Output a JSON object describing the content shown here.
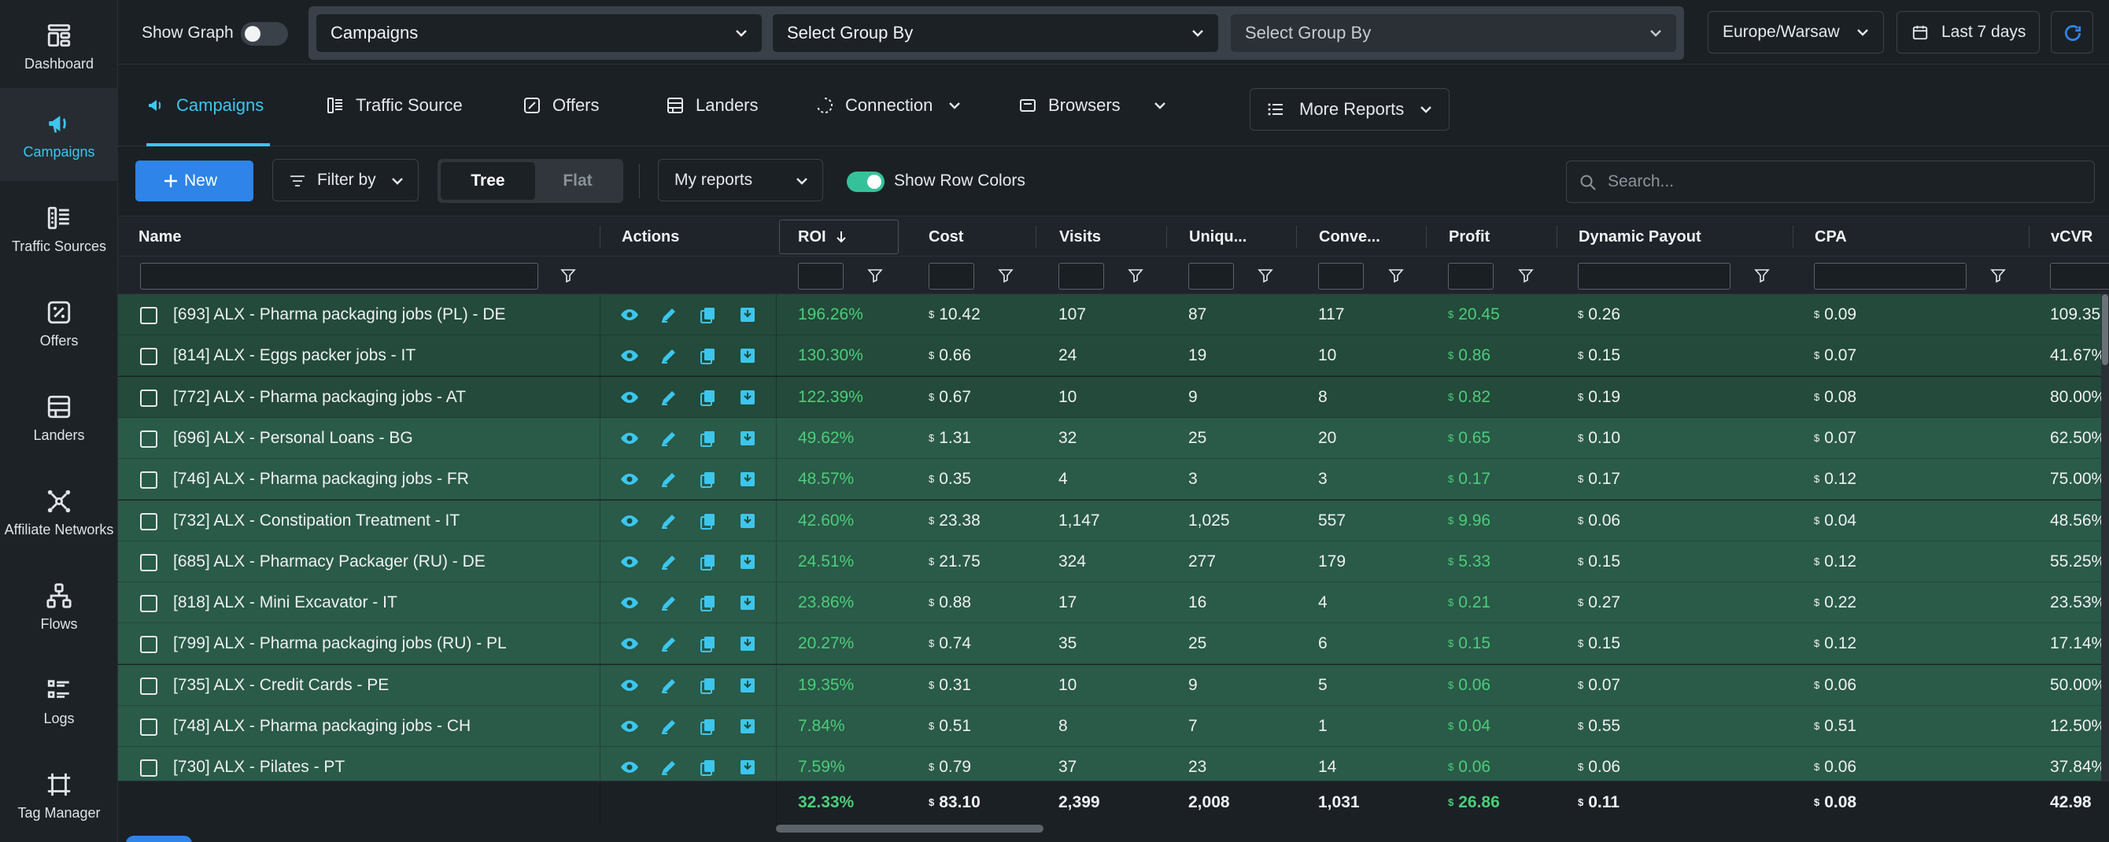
{
  "sidebar": {
    "items": [
      {
        "label": "Dashboard",
        "icon": "dashboard-icon",
        "active": false
      },
      {
        "label": "Campaigns",
        "icon": "megaphone-icon",
        "active": true
      },
      {
        "label": "Traffic Sources",
        "icon": "traffic-sources-icon",
        "active": false
      },
      {
        "label": "Offers",
        "icon": "offers-icon",
        "active": false
      },
      {
        "label": "Landers",
        "icon": "landers-icon",
        "active": false
      },
      {
        "label": "Affiliate Networks",
        "icon": "network-icon",
        "active": false
      },
      {
        "label": "Flows",
        "icon": "flows-icon",
        "active": false
      },
      {
        "label": "Logs",
        "icon": "logs-icon",
        "active": false
      },
      {
        "label": "Tag Manager",
        "icon": "tag-manager-icon",
        "active": false
      }
    ]
  },
  "topbar": {
    "show_graph_label": "Show Graph",
    "show_graph_on": false,
    "group1": "Campaigns",
    "group2": "Select Group By",
    "group3": "Select Group By",
    "timezone": "Europe/Warsaw",
    "date_range": "Last 7 days"
  },
  "tabs": {
    "campaigns": "Campaigns",
    "traffic_source": "Traffic Source",
    "offers": "Offers",
    "landers": "Landers",
    "connection": "Connection",
    "browsers": "Browsers",
    "more_reports": "More Reports"
  },
  "toolbar": {
    "new_label": "New",
    "filter_label": "Filter by",
    "tree_label": "Tree",
    "flat_label": "Flat",
    "my_reports": "My reports",
    "row_colors_label": "Show Row Colors",
    "row_colors_on": true,
    "search_placeholder": "Search..."
  },
  "table": {
    "columns": {
      "name": "Name",
      "actions": "Actions",
      "roi": "ROI",
      "cost": "Cost",
      "visits": "Visits",
      "uniques": "Uniqu...",
      "conversions": "Conve...",
      "profit": "Profit",
      "dynamic_payout": "Dynamic Payout",
      "cpa": "CPA",
      "vcvr": "vCVR"
    },
    "currency": "$",
    "rows": [
      {
        "name": "[693] ALX - Pharma packaging jobs (PL) - DE",
        "roi": "196.26%",
        "cost": "10.42",
        "visits": "107",
        "uniques": "87",
        "conversions": "117",
        "profit": "20.45",
        "payout": "0.26",
        "cpa": "0.09",
        "vcvr": "109.35",
        "bg": "#234a3a"
      },
      {
        "name": "[814] ALX - Eggs packer jobs - IT",
        "roi": "130.30%",
        "cost": "0.66",
        "visits": "24",
        "uniques": "19",
        "conversions": "10",
        "profit": "0.86",
        "payout": "0.15",
        "cpa": "0.07",
        "vcvr": "41.67%",
        "bg": "#234a3a"
      },
      {
        "name": "[772] ALX - Pharma packaging jobs - AT",
        "roi": "122.39%",
        "cost": "0.67",
        "visits": "10",
        "uniques": "9",
        "conversions": "8",
        "profit": "0.82",
        "payout": "0.19",
        "cpa": "0.08",
        "vcvr": "80.00%",
        "bg": "#234a3a"
      },
      {
        "name": "[696] ALX - Personal Loans - BG",
        "roi": "49.62%",
        "cost": "1.31",
        "visits": "32",
        "uniques": "25",
        "conversions": "20",
        "profit": "0.65",
        "payout": "0.10",
        "cpa": "0.07",
        "vcvr": "62.50%",
        "bg": "#2a5a48"
      },
      {
        "name": "[746] ALX - Pharma packaging jobs - FR",
        "roi": "48.57%",
        "cost": "0.35",
        "visits": "4",
        "uniques": "3",
        "conversions": "3",
        "profit": "0.17",
        "payout": "0.17",
        "cpa": "0.12",
        "vcvr": "75.00%",
        "bg": "#2a5a48"
      },
      {
        "name": "[732] ALX - Constipation Treatment - IT",
        "roi": "42.60%",
        "cost": "23.38",
        "visits": "1,147",
        "uniques": "1,025",
        "conversions": "557",
        "profit": "9.96",
        "payout": "0.06",
        "cpa": "0.04",
        "vcvr": "48.56%",
        "bg": "#2a5a48"
      },
      {
        "name": "[685] ALX - Pharmacy Packager (RU) - DE",
        "roi": "24.51%",
        "cost": "21.75",
        "visits": "324",
        "uniques": "277",
        "conversions": "179",
        "profit": "5.33",
        "payout": "0.15",
        "cpa": "0.12",
        "vcvr": "55.25%",
        "bg": "#2a5a48"
      },
      {
        "name": "[818] ALX - Mini Excavator - IT",
        "roi": "23.86%",
        "cost": "0.88",
        "visits": "17",
        "uniques": "16",
        "conversions": "4",
        "profit": "0.21",
        "payout": "0.27",
        "cpa": "0.22",
        "vcvr": "23.53%",
        "bg": "#2a5a48"
      },
      {
        "name": "[799] ALX - Pharma packaging jobs (RU) - PL",
        "roi": "20.27%",
        "cost": "0.74",
        "visits": "35",
        "uniques": "25",
        "conversions": "6",
        "profit": "0.15",
        "payout": "0.15",
        "cpa": "0.12",
        "vcvr": "17.14%",
        "bg": "#2a5a48"
      },
      {
        "name": "[735] ALX - Credit Cards - PE",
        "roi": "19.35%",
        "cost": "0.31",
        "visits": "10",
        "uniques": "9",
        "conversions": "5",
        "profit": "0.06",
        "payout": "0.07",
        "cpa": "0.06",
        "vcvr": "50.00%",
        "bg": "#2a5a48"
      },
      {
        "name": "[748] ALX - Pharma packaging jobs - CH",
        "roi": "7.84%",
        "cost": "0.51",
        "visits": "8",
        "uniques": "7",
        "conversions": "1",
        "profit": "0.04",
        "payout": "0.55",
        "cpa": "0.51",
        "vcvr": "12.50%",
        "bg": "#2a5a48"
      },
      {
        "name": "[730] ALX - Pilates - PT",
        "roi": "7.59%",
        "cost": "0.79",
        "visits": "37",
        "uniques": "23",
        "conversions": "14",
        "profit": "0.06",
        "payout": "0.06",
        "cpa": "0.06",
        "vcvr": "37.84%",
        "bg": "#2a5a48"
      }
    ],
    "totals": {
      "roi": "32.33%",
      "cost": "83.10",
      "visits": "2,399",
      "uniques": "2,008",
      "conversions": "1,031",
      "profit": "26.86",
      "payout": "0.11",
      "cpa": "0.08",
      "vcvr": "42.98"
    }
  },
  "colors": {
    "accent": "#3cc6ee",
    "primary": "#2e84e8",
    "positive": "#4ccd7a",
    "toggle_on": "#35c29a"
  }
}
